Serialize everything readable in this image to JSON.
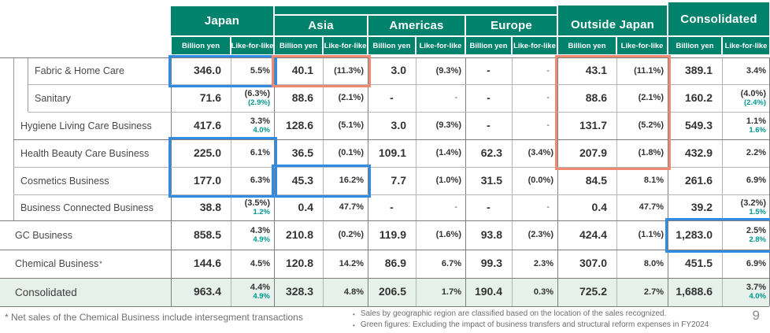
{
  "slide": {
    "page_number": "9",
    "footnote_left": "* Net sales of the Chemical Business include intersegment transactions",
    "footnotes_right": [
      "Sales by geographic region are classified based on the location of the sales recognized.",
      "Green figures: Excluding the impact of business transfers and structural reform expenses in FY2024"
    ]
  },
  "colors": {
    "header_green": "#00826C",
    "total_row_bg": "#E6F1EC",
    "green_text": "#009690",
    "blue_box": "#2F8BE4",
    "red_box": "#EE8A72"
  },
  "table": {
    "regions": [
      {
        "label": "Japan"
      },
      {
        "label": "Asia"
      },
      {
        "label": "Americas"
      },
      {
        "label": "Europe"
      },
      {
        "label": "Outside Japan"
      },
      {
        "label": "Consolidated"
      }
    ],
    "sub_headers": {
      "amount": "Billion yen",
      "lfl": "Like-for-like"
    },
    "rows": [
      {
        "label": "Fabric & Home Care",
        "indent": 2,
        "cells": [
          {
            "amount": "346.0",
            "lfl": "5.5%"
          },
          {
            "amount": "40.1",
            "lfl": "(11.3%)"
          },
          {
            "amount": "3.0",
            "lfl": "(9.3%)"
          },
          {
            "amount": "-",
            "lfl": "-"
          },
          {
            "amount": "43.1",
            "lfl": "(11.1%)"
          },
          {
            "amount": "389.1",
            "lfl": "3.4%"
          }
        ]
      },
      {
        "label": "Sanitary",
        "indent": 2,
        "cells": [
          {
            "amount": "71.6",
            "lfl": "(6.3%)",
            "lfl2": "(2.9%)"
          },
          {
            "amount": "88.6",
            "lfl": "(2.1%)"
          },
          {
            "amount": "-",
            "lfl": "-"
          },
          {
            "amount": "-",
            "lfl": "-"
          },
          {
            "amount": "88.6",
            "lfl": "(2.1%)"
          },
          {
            "amount": "160.2",
            "lfl": "(4.0%)",
            "lfl2": "(2.4%)"
          }
        ]
      },
      {
        "label": "Hygiene Living Care Business",
        "indent": 1,
        "cells": [
          {
            "amount": "417.6",
            "lfl": "3.3%",
            "lfl2": "4.0%"
          },
          {
            "amount": "128.6",
            "lfl": "(5.1%)"
          },
          {
            "amount": "3.0",
            "lfl": "(9.3%)"
          },
          {
            "amount": "-",
            "lfl": "-"
          },
          {
            "amount": "131.7",
            "lfl": "(5.2%)"
          },
          {
            "amount": "549.3",
            "lfl": "1.1%",
            "lfl2": "1.6%"
          }
        ]
      },
      {
        "label": "Health Beauty Care Business",
        "indent": 1,
        "cells": [
          {
            "amount": "225.0",
            "lfl": "6.1%"
          },
          {
            "amount": "36.5",
            "lfl": "(0.1%)"
          },
          {
            "amount": "109.1",
            "lfl": "(1.4%)"
          },
          {
            "amount": "62.3",
            "lfl": "(3.4%)"
          },
          {
            "amount": "207.9",
            "lfl": "(1.8%)"
          },
          {
            "amount": "432.9",
            "lfl": "2.2%"
          }
        ]
      },
      {
        "label": "Cosmetics Business",
        "indent": 1,
        "cells": [
          {
            "amount": "177.0",
            "lfl": "6.3%"
          },
          {
            "amount": "45.3",
            "lfl": "16.2%"
          },
          {
            "amount": "7.7",
            "lfl": "(1.0%)"
          },
          {
            "amount": "31.5",
            "lfl": "(0.0%)"
          },
          {
            "amount": "84.5",
            "lfl": "8.1%"
          },
          {
            "amount": "261.6",
            "lfl": "6.9%"
          }
        ]
      },
      {
        "label": "Business Connected Business",
        "indent": 1,
        "cells": [
          {
            "amount": "38.8",
            "lfl": "(3.5%)",
            "lfl2": "1.2%"
          },
          {
            "amount": "0.4",
            "lfl": "47.7%"
          },
          {
            "amount": "-",
            "lfl": "-"
          },
          {
            "amount": "-",
            "lfl": "-"
          },
          {
            "amount": "0.4",
            "lfl": "47.7%"
          },
          {
            "amount": "39.2",
            "lfl": "(3.2%)",
            "lfl2": "1.5%"
          }
        ]
      },
      {
        "label": "GC Business",
        "indent": 0,
        "cells": [
          {
            "amount": "858.5",
            "lfl": "4.3%",
            "lfl2": "4.9%"
          },
          {
            "amount": "210.8",
            "lfl": "(0.2%)"
          },
          {
            "amount": "119.9",
            "lfl": "(1.6%)"
          },
          {
            "amount": "93.8",
            "lfl": "(2.3%)"
          },
          {
            "amount": "424.4",
            "lfl": "(1.1%)"
          },
          {
            "amount": "1,283.0",
            "lfl": "2.5%",
            "lfl2": "2.8%"
          }
        ]
      },
      {
        "label": "Chemical Business",
        "label_sup": "*",
        "indent": 0,
        "cells": [
          {
            "amount": "144.6",
            "lfl": "4.5%"
          },
          {
            "amount": "120.8",
            "lfl": "14.2%"
          },
          {
            "amount": "86.9",
            "lfl": "6.7%"
          },
          {
            "amount": "99.3",
            "lfl": "2.3%"
          },
          {
            "amount": "307.0",
            "lfl": "8.0%"
          },
          {
            "amount": "451.5",
            "lfl": "6.9%"
          }
        ]
      },
      {
        "label": "Consolidated",
        "indent": 0,
        "total": true,
        "cells": [
          {
            "amount": "963.4",
            "lfl": "4.4%",
            "lfl2": "4.9%"
          },
          {
            "amount": "328.3",
            "lfl": "4.8%"
          },
          {
            "amount": "206.5",
            "lfl": "1.7%"
          },
          {
            "amount": "190.4",
            "lfl": "0.3%"
          },
          {
            "amount": "725.2",
            "lfl": "2.7%"
          },
          {
            "amount": "1,688.6",
            "lfl": "3.7%",
            "lfl2": "4.0%"
          }
        ]
      }
    ],
    "highlights": [
      {
        "color": "blue",
        "region": "Japan",
        "row_start": 0,
        "row_end": 0
      },
      {
        "color": "red",
        "region": "Asia",
        "row_start": 0,
        "row_end": 0
      },
      {
        "color": "red",
        "region": "Outside Japan",
        "row_start": 0,
        "row_end": 3
      },
      {
        "color": "blue",
        "region": "Japan",
        "row_start": 3,
        "row_end": 4
      },
      {
        "color": "blue",
        "region": "Asia",
        "row_start": 4,
        "row_end": 4
      },
      {
        "color": "blue",
        "region": "Consolidated",
        "row_start": 6,
        "row_end": 6
      }
    ]
  }
}
